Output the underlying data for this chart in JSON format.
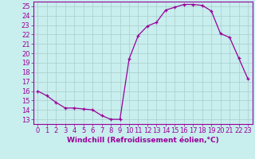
{
  "x": [
    0,
    1,
    2,
    3,
    4,
    5,
    6,
    7,
    8,
    9,
    10,
    11,
    12,
    13,
    14,
    15,
    16,
    17,
    18,
    19,
    20,
    21,
    22,
    23
  ],
  "y": [
    16,
    15.5,
    14.8,
    14.2,
    14.2,
    14.1,
    14.0,
    13.4,
    13.0,
    13.0,
    19.4,
    21.9,
    22.9,
    23.3,
    24.6,
    24.9,
    25.2,
    25.2,
    25.1,
    24.5,
    22.1,
    21.7,
    19.5,
    17.3
  ],
  "line_color": "#990099",
  "marker": "+",
  "bg_color": "#c8eeee",
  "grid_color": "#aacccc",
  "xlabel": "Windchill (Refroidissement éolien,°C)",
  "xlim": [
    -0.5,
    23.5
  ],
  "ylim": [
    12.5,
    25.5
  ],
  "xticks": [
    0,
    1,
    2,
    3,
    4,
    5,
    6,
    7,
    8,
    9,
    10,
    11,
    12,
    13,
    14,
    15,
    16,
    17,
    18,
    19,
    20,
    21,
    22,
    23
  ],
  "yticks": [
    13,
    14,
    15,
    16,
    17,
    18,
    19,
    20,
    21,
    22,
    23,
    24,
    25
  ],
  "tick_color": "#990099",
  "label_color": "#990099",
  "spine_color": "#990099",
  "font_size": 6,
  "xlabel_fontsize": 6.5
}
